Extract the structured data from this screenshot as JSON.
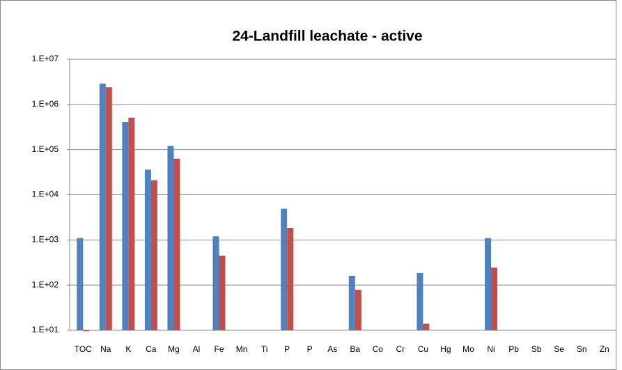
{
  "chart_data": {
    "type": "bar",
    "title": "24-Landfill leachate  - active",
    "categories": [
      "TOC",
      "Na",
      "K",
      "Ca",
      "Mg",
      "Al",
      "Fe",
      "Mn",
      "Ti",
      "P",
      "P",
      "As",
      "Ba",
      "Co",
      "Cr",
      "Cu",
      "Hg",
      "Mo",
      "Ni",
      "Pb",
      "Sb",
      "Se",
      "Sn",
      "Zn"
    ],
    "series": [
      {
        "color": "#4f81bd",
        "values": [
          1100,
          2900000,
          410000,
          36000,
          120000,
          null,
          1200,
          null,
          null,
          4900,
          null,
          null,
          160,
          null,
          null,
          185,
          null,
          null,
          1100,
          null,
          null,
          null,
          null,
          null
        ]
      },
      {
        "color": "#c0504d",
        "values": [
          9.5,
          2400000,
          510000,
          21000,
          63000,
          null,
          450,
          null,
          null,
          1850,
          null,
          null,
          79,
          null,
          null,
          14,
          null,
          null,
          245,
          null,
          null,
          null,
          null,
          null
        ]
      }
    ],
    "ylim": [
      10,
      10000000
    ],
    "log_y": true,
    "grid": true,
    "yticks": [
      {
        "value": 10,
        "label": "1.E+01"
      },
      {
        "value": 100,
        "label": "1.E+02"
      },
      {
        "value": 1000,
        "label": "1.E+03"
      },
      {
        "value": 10000,
        "label": "1.E+04"
      },
      {
        "value": 100000,
        "label": "1.E+05"
      },
      {
        "value": 1000000,
        "label": "1.E+06"
      },
      {
        "value": 10000000,
        "label": "1.E+07"
      }
    ]
  }
}
